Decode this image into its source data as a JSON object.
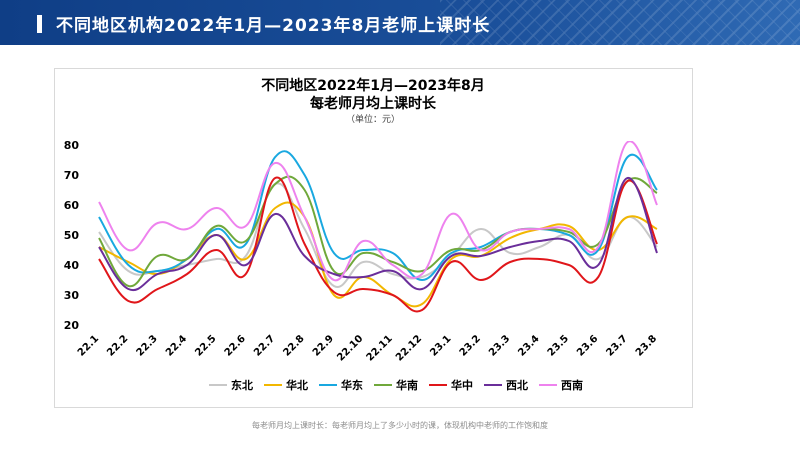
{
  "header": {
    "title": "不同地区机构2022年1月—2023年8月老师上课时长"
  },
  "footnote": "每老师月均上课时长：每老师月均上了多少小时的课，体现机构中老师的工作饱和度",
  "chart_data": {
    "type": "line",
    "title_line1": "不同地区2022年1月—2023年8月",
    "title_line2": "每老师月均上课时长",
    "subtitle": "（单位：元）",
    "categories": [
      "22.1",
      "22.2",
      "22.3",
      "22.4",
      "22.5",
      "22.6",
      "22.7",
      "22.8",
      "22.9",
      "22.10",
      "22.11",
      "22.12",
      "23.1",
      "23.2",
      "23.3",
      "23.4",
      "23.5",
      "23.6",
      "23.7",
      "23.8"
    ],
    "ylim": [
      20,
      80
    ],
    "yticks": [
      20,
      30,
      40,
      50,
      60,
      70,
      80
    ],
    "grid": false,
    "smooth": true,
    "legend_position": "bottom",
    "series": [
      {
        "name": "东北",
        "color": "#c8c8c8",
        "values": [
          51,
          38,
          38,
          40,
          42,
          43,
          67,
          52,
          33,
          41,
          37,
          36,
          43,
          52,
          44,
          46,
          50,
          42,
          56,
          46
        ]
      },
      {
        "name": "华北",
        "color": "#f2b700",
        "values": [
          46,
          41,
          37,
          42,
          50,
          42,
          59,
          56,
          30,
          36,
          30,
          27,
          42,
          43,
          49,
          52,
          53,
          45,
          56,
          52
        ]
      },
      {
        "name": "华东",
        "color": "#19a8e0",
        "values": [
          56,
          40,
          38,
          42,
          52,
          47,
          76,
          70,
          44,
          45,
          44,
          35,
          44,
          46,
          51,
          52,
          50,
          45,
          76,
          65
        ]
      },
      {
        "name": "华南",
        "color": "#70a83b",
        "values": [
          49,
          33,
          43,
          42,
          53,
          48,
          67,
          65,
          38,
          44,
          41,
          38,
          45,
          45,
          51,
          52,
          51,
          47,
          68,
          64
        ]
      },
      {
        "name": "华中",
        "color": "#e0161a",
        "values": [
          42,
          28,
          32,
          37,
          45,
          37,
          69,
          47,
          31,
          32,
          30,
          25,
          41,
          35,
          41,
          42,
          40,
          36,
          68,
          47
        ]
      },
      {
        "name": "西北",
        "color": "#6a2e9a",
        "values": [
          46,
          32,
          37,
          40,
          50,
          40,
          57,
          43,
          37,
          36,
          38,
          32,
          43,
          43,
          46,
          48,
          48,
          40,
          69,
          44
        ]
      },
      {
        "name": "西南",
        "color": "#ee82ee",
        "values": [
          61,
          45,
          54,
          52,
          59,
          53,
          74,
          56,
          35,
          48,
          40,
          37,
          57,
          45,
          51,
          52,
          52,
          46,
          81,
          60
        ]
      }
    ]
  }
}
